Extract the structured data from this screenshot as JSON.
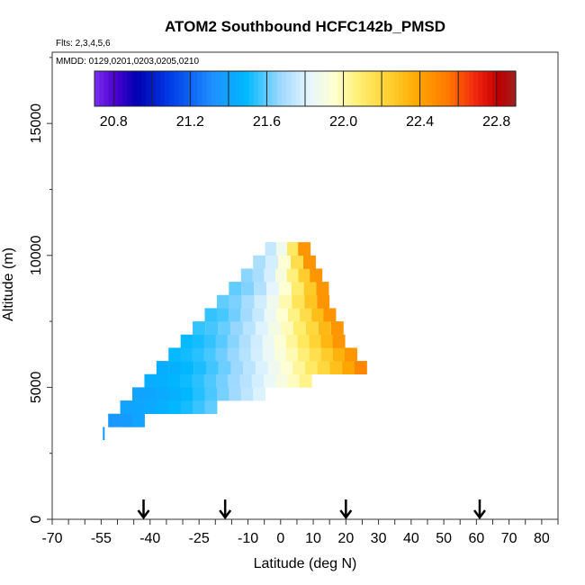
{
  "chart_data": {
    "type": "heatmap",
    "title": "ATOM2 Southbound HCFC142b_PMSD",
    "flights_note": "Flts: 2,3,4,5,6",
    "dates_note": "MMDD: 0129,0201,0203,0205,0210",
    "xlabel": "Latitude (deg N)",
    "ylabel": "Altitude (m)",
    "xlim": [
      -70,
      85
    ],
    "ylim": [
      0,
      17700
    ],
    "x_tick_labels": [
      "-70",
      "-55",
      "-40",
      "-25",
      "-10",
      "0",
      "10",
      "20",
      "30",
      "40",
      "50",
      "60",
      "70",
      "80"
    ],
    "y_tick_labels": [
      "0",
      "5000",
      "10000",
      "15000"
    ],
    "colorbar": {
      "range": [
        20.7,
        22.9
      ],
      "tick_values": [
        20.8,
        21.2,
        21.6,
        22.0,
        22.4,
        22.8
      ],
      "tick_labels": [
        "20.8",
        "21.2",
        "21.6",
        "22.0",
        "22.4",
        "22.8"
      ]
    },
    "arrows_latitude": [
      -42,
      -17,
      20,
      61
    ],
    "cell_size": {
      "lat": 3.7,
      "alt": 500
    },
    "rows": [
      {
        "alt": 3250,
        "segments": [
          {
            "from": -54.2,
            "to": -54.2,
            "v0": 21.35,
            "v1": 21.35
          }
        ]
      },
      {
        "alt": 3750,
        "segments": [
          {
            "from": -51,
            "to": -43.6,
            "v0": 21.35,
            "v1": 21.4
          }
        ]
      },
      {
        "alt": 4250,
        "segments": [
          {
            "from": -47.3,
            "to": -21.4,
            "v0": 21.4,
            "v1": 21.6
          }
        ]
      },
      {
        "alt": 4750,
        "segments": [
          {
            "from": -43.6,
            "to": -6.6,
            "v0": 21.4,
            "v1": 21.8
          }
        ]
      },
      {
        "alt": 5250,
        "segments": [
          {
            "from": -39.9,
            "to": 7.6,
            "v0": 21.45,
            "v1": 22.05
          }
        ]
      },
      {
        "alt": 5750,
        "segments": [
          {
            "from": -36.2,
            "to": 24.5,
            "v0": 21.45,
            "v1": 22.5
          }
        ]
      },
      {
        "alt": 6250,
        "segments": [
          {
            "from": -32.5,
            "to": 21.5,
            "v0": 21.5,
            "v1": 22.45
          }
        ]
      },
      {
        "alt": 6750,
        "segments": [
          {
            "from": -28.8,
            "to": 17.8,
            "v0": 21.5,
            "v1": 22.45
          }
        ]
      },
      {
        "alt": 7250,
        "segments": [
          {
            "from": -25.1,
            "to": 17.3,
            "v0": 21.55,
            "v1": 22.45
          }
        ]
      },
      {
        "alt": 7750,
        "segments": [
          {
            "from": -21.4,
            "to": 15,
            "v0": 21.55,
            "v1": 22.45
          }
        ]
      },
      {
        "alt": 8250,
        "segments": [
          {
            "from": -17.7,
            "to": 13,
            "v0": 21.6,
            "v1": 22.45
          }
        ]
      },
      {
        "alt": 8750,
        "segments": [
          {
            "from": -14,
            "to": 12.8,
            "v0": 21.6,
            "v1": 22.45
          }
        ]
      },
      {
        "alt": 9250,
        "segments": [
          {
            "from": -10.3,
            "to": 10.8,
            "v0": 21.65,
            "v1": 22.45
          }
        ]
      },
      {
        "alt": 9750,
        "segments": [
          {
            "from": -6.6,
            "to": 8.8,
            "v0": 21.7,
            "v1": 22.45
          }
        ]
      },
      {
        "alt": 10250,
        "segments": [
          {
            "from": -2.9,
            "to": 7.2,
            "v0": 21.75,
            "v1": 22.45
          }
        ]
      }
    ]
  }
}
